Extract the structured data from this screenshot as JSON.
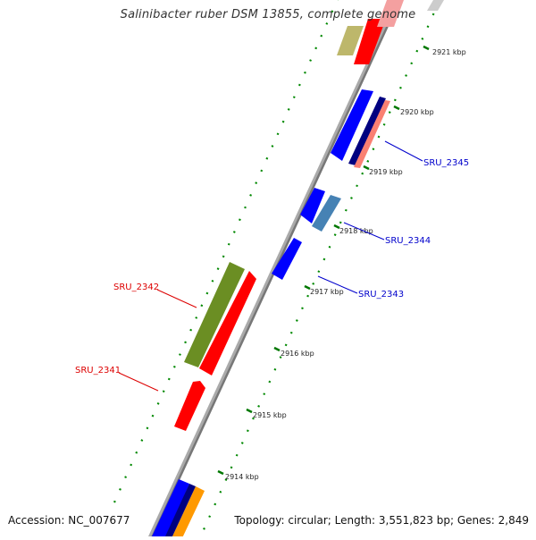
{
  "title": "Salinibacter ruber DSM 13855, complete genome",
  "accession": "Accession: NC_007677",
  "topology": "Topology: circular; Length: 3,551,823 bp; Genes: 2,849",
  "ticks": [
    "2914 kbp",
    "2915 kbp",
    "2916 kbp",
    "2917 kbp",
    "2918 kbp",
    "2919 kbp",
    "2920 kbp",
    "2921 kbp"
  ],
  "genes": {
    "SRU_2341": {
      "label": "SRU_2341",
      "color": "#ff0000"
    },
    "SRU_2342": {
      "label": "SRU_2342",
      "color": "#ff0000"
    },
    "SRU_2343": {
      "label": "SRU_2343",
      "color": "#0000cc"
    },
    "SRU_2344": {
      "label": "SRU_2344",
      "color": "#0000cc"
    },
    "SRU_2345": {
      "label": "SRU_2345",
      "color": "#0000cc"
    }
  },
  "colors": {
    "backbone": "#888888",
    "tick": "#007700",
    "dots": "#008800",
    "red": "#ff0000",
    "blue": "#0000ff",
    "navy": "#000080",
    "salmon": "#fa8072",
    "steelblue": "#4682b4",
    "olive": "#6b8e23",
    "khaki": "#bdb76b",
    "orange": "#ff9900",
    "lightgray": "#cccccc"
  }
}
